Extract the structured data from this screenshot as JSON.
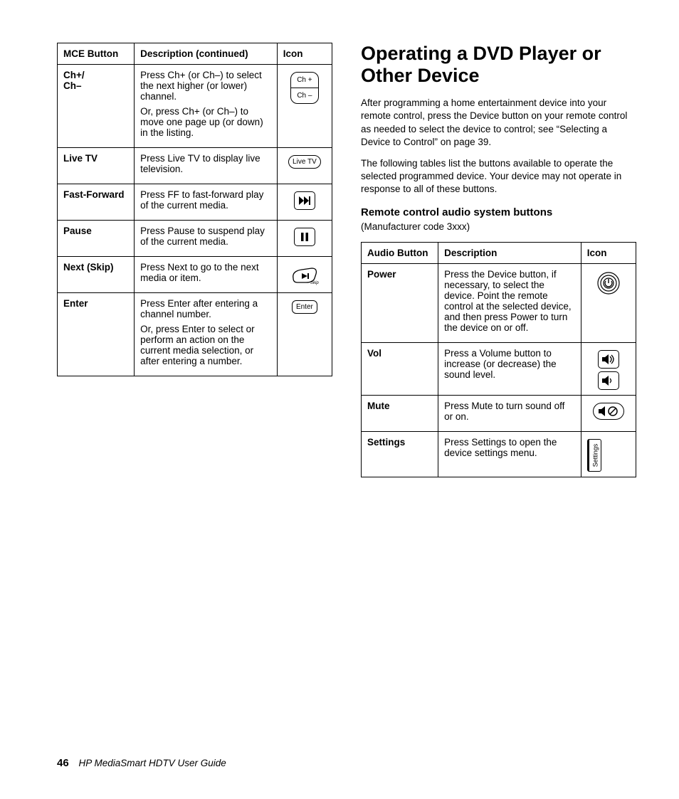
{
  "left_table": {
    "headers": [
      "MCE Button",
      "Description (continued)",
      "Icon"
    ],
    "rows": [
      {
        "button": "Ch+/\nCh–",
        "desc": "Press Ch+ (or Ch–) to select the next higher (or lower) channel.\nOr, press Ch+ (or Ch–) to move one page up (or down) in the listing.",
        "icon": "ch-split"
      },
      {
        "button": "Live TV",
        "desc": "Press Live TV to display live television.",
        "icon": "livetv"
      },
      {
        "button": "Fast-Forward",
        "desc": "Press FF to fast-forward play of the current media.",
        "icon": "ff"
      },
      {
        "button": "Pause",
        "desc": "Press Pause to suspend play of the current media.",
        "icon": "pause"
      },
      {
        "button": "Next (Skip)",
        "desc": "Press Next to go to the next media or item.",
        "icon": "skip"
      },
      {
        "button": "Enter",
        "desc": "Press Enter after entering a channel number.\nOr, press Enter to select or perform an action on the current media selection, or after entering a number.",
        "icon": "enter"
      }
    ]
  },
  "right": {
    "heading": "Operating a DVD Player or Other Device",
    "para1": "After programming a home entertainment device into your remote control, press the Device button on your remote control as needed to select the device to control; see “Selecting a Device to Control” on page 39.",
    "para2": "The following tables list the buttons available to operate the selected programmed device. Your device may not operate in response to all of these buttons.",
    "subhead": "Remote control audio system buttons",
    "note": "(Manufacturer code 3xxx)",
    "table": {
      "headers": [
        "Audio Button",
        "Description",
        "Icon"
      ],
      "rows": [
        {
          "button": "Power",
          "desc": "Press the Device button, if necessary, to select the device. Point the remote control at the selected device, and then press Power to turn the device on or off.",
          "icon": "power"
        },
        {
          "button": "Vol",
          "desc": "Press a Volume button to increase (or decrease) the sound level.",
          "icon": "vol"
        },
        {
          "button": "Mute",
          "desc": "Press Mute to turn sound off or on.",
          "icon": "mute"
        },
        {
          "button": "Settings",
          "desc": "Press Settings to open the device settings menu.",
          "icon": "settings"
        }
      ]
    }
  },
  "footer": {
    "page": "46",
    "guide": "HP MediaSmart HDTV User Guide"
  },
  "colors": {
    "text": "#000000",
    "border": "#000000",
    "background": "#ffffff"
  }
}
